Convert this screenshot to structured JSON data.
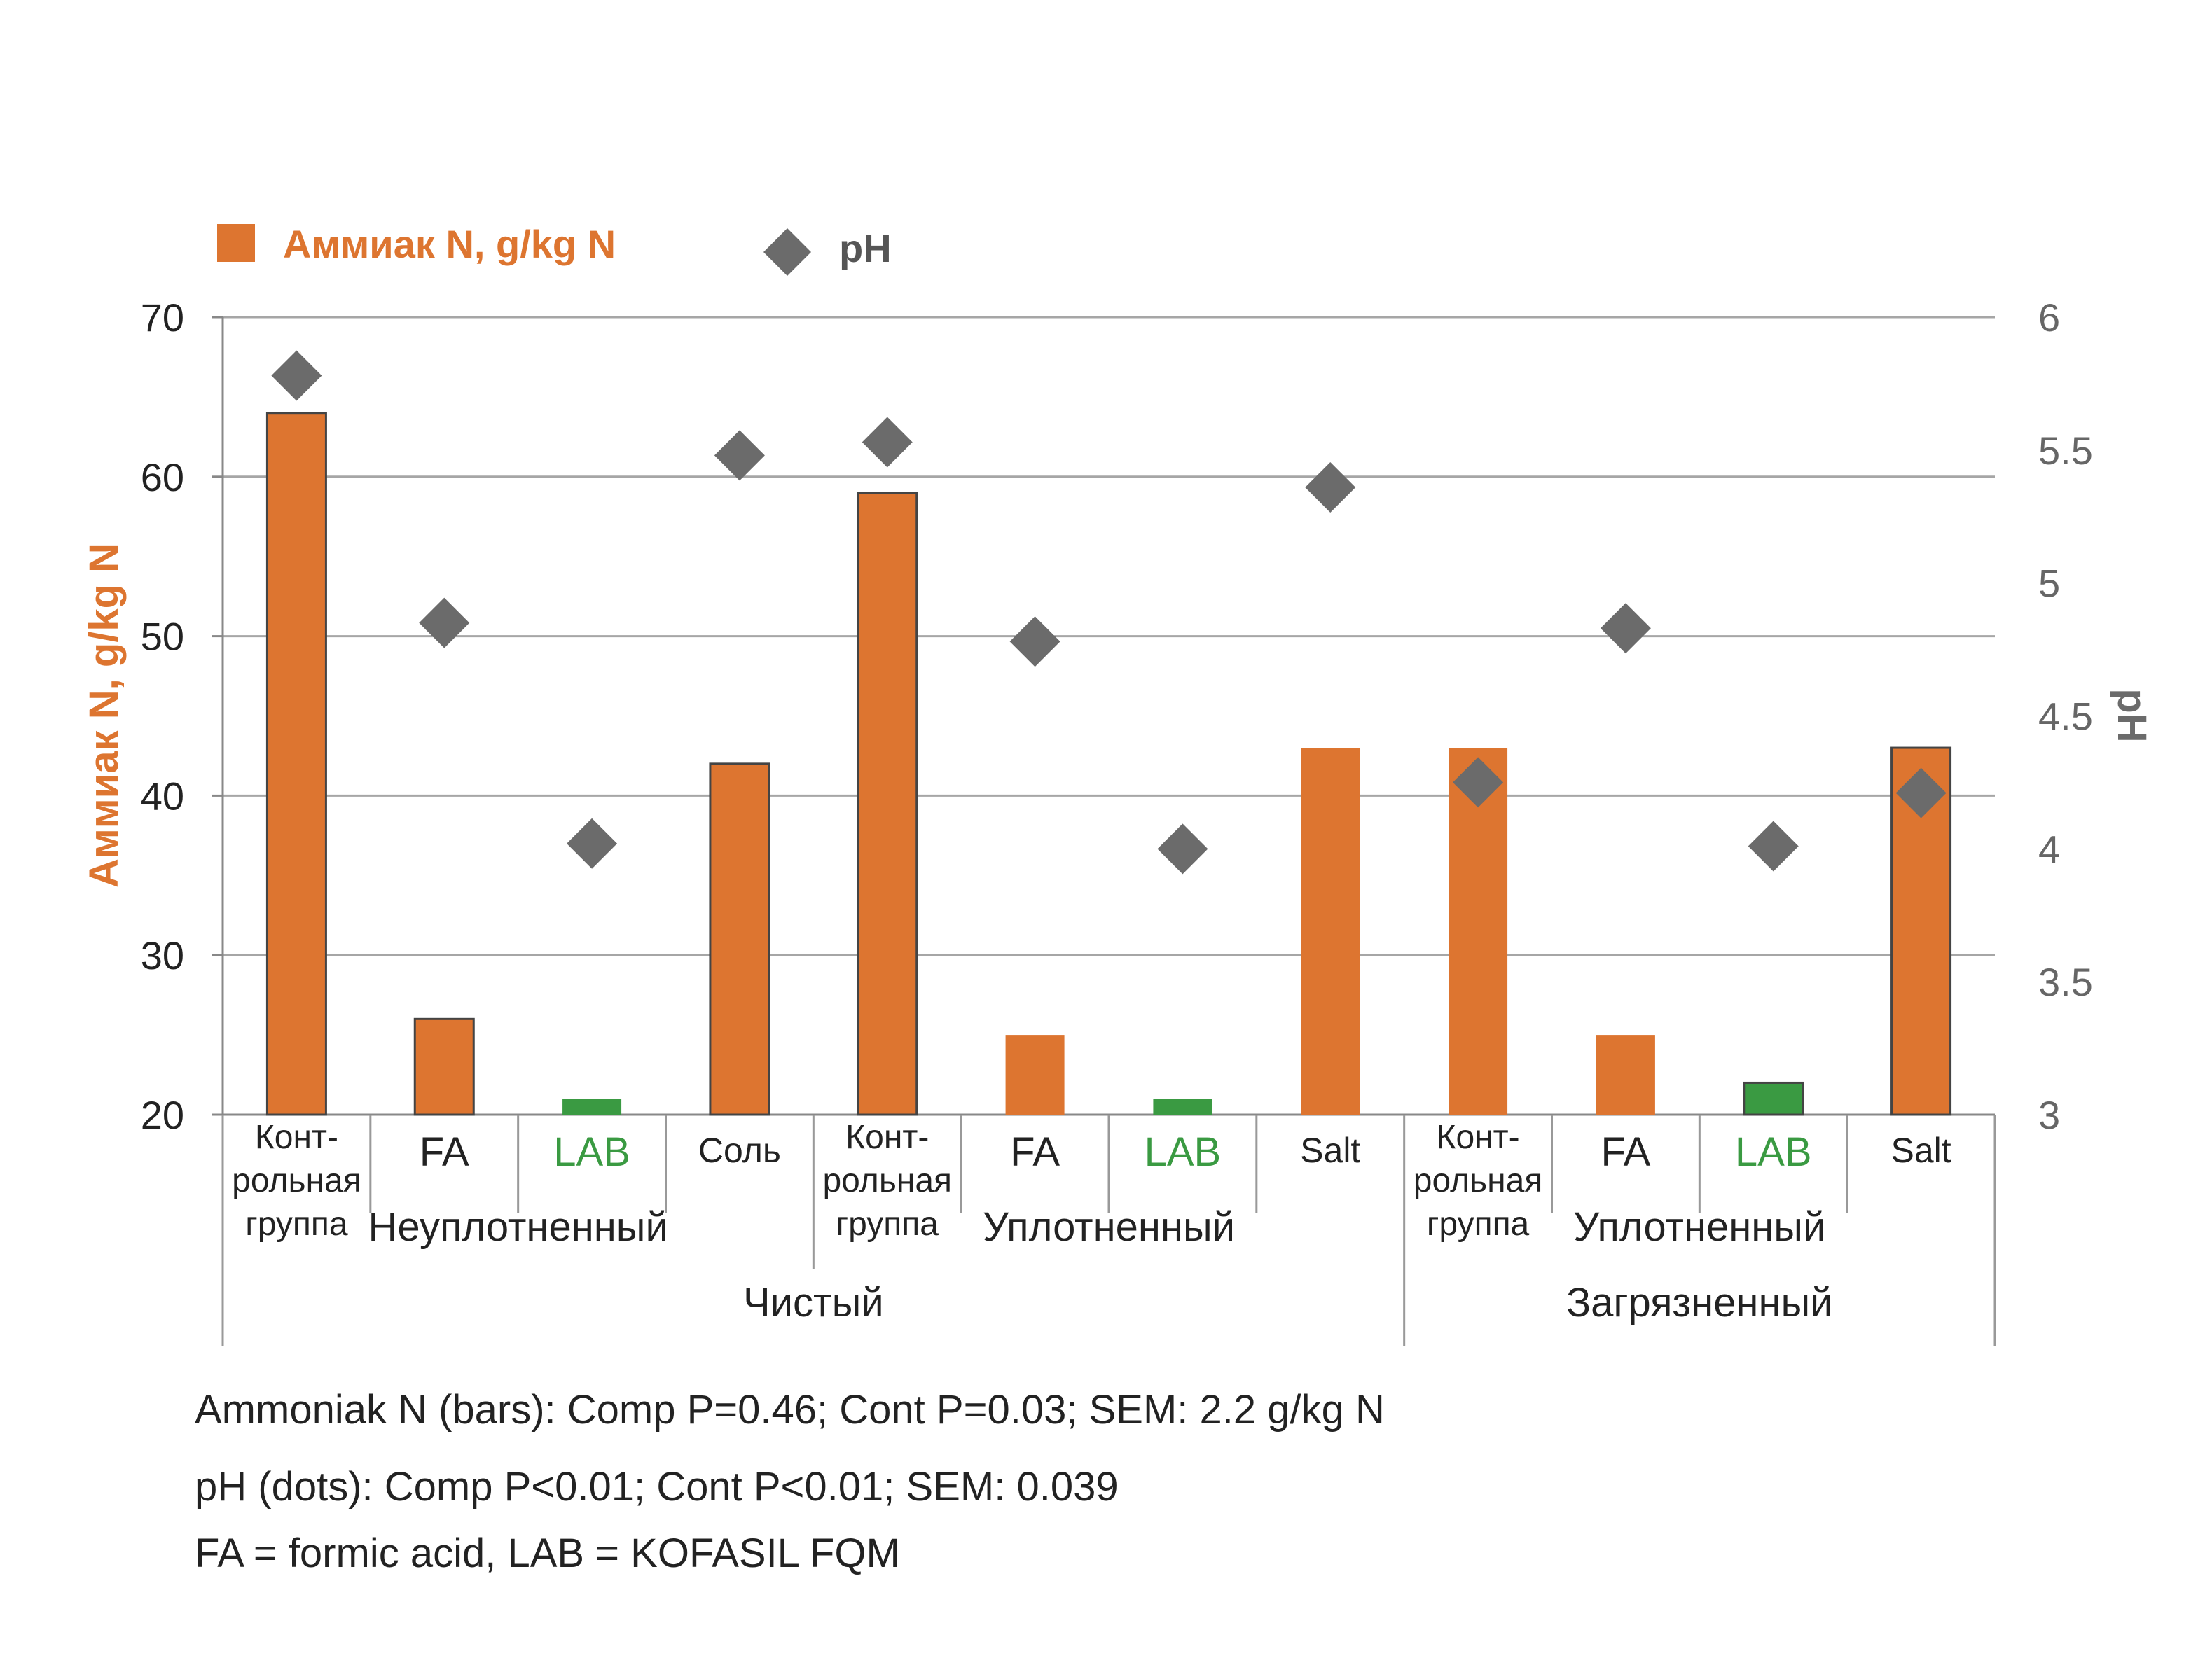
{
  "chart_data": {
    "type": "bar",
    "title": "",
    "legend": {
      "placement": "top-left",
      "items": [
        {
          "label": "Аммиак N, g/kg N",
          "marker": "square",
          "color": "#dd7530"
        },
        {
          "label": "pH",
          "marker": "diamond",
          "color": "#6b6b6b"
        }
      ]
    },
    "y_axis_left": {
      "label": "Аммиак  N, g/kg N",
      "min": 20,
      "max": 70,
      "ticks": [
        20,
        30,
        40,
        50,
        60,
        70
      ]
    },
    "y_axis_right": {
      "label": "pH",
      "min": 3,
      "max": 6,
      "ticks": [
        3,
        3.5,
        4,
        4.5,
        5,
        5.5,
        6
      ]
    },
    "categories": [
      {
        "label": [
          "Конт-",
          "рольная",
          "группа"
        ],
        "color": "#222222",
        "size": "small"
      },
      {
        "label": [
          "FA"
        ],
        "color": "#222222",
        "size": "large"
      },
      {
        "label": [
          "LAB"
        ],
        "color": "#3a9a42",
        "size": "large"
      },
      {
        "label": [
          "Соль"
        ],
        "color": "#222222",
        "size": "small"
      },
      {
        "label": [
          "Конт-",
          "рольная",
          "группа"
        ],
        "color": "#222222",
        "size": "small"
      },
      {
        "label": [
          "FA"
        ],
        "color": "#222222",
        "size": "large"
      },
      {
        "label": [
          "LAB"
        ],
        "color": "#3a9a42",
        "size": "large"
      },
      {
        "label": [
          "Salt"
        ],
        "color": "#222222",
        "size": "small"
      },
      {
        "label": [
          "Конт-",
          "рольная",
          "группа"
        ],
        "color": "#222222",
        "size": "small"
      },
      {
        "label": [
          "FA"
        ],
        "color": "#222222",
        "size": "large"
      },
      {
        "label": [
          "LAB"
        ],
        "color": "#3a9a42",
        "size": "large"
      },
      {
        "label": [
          "Salt"
        ],
        "color": "#222222",
        "size": "small"
      }
    ],
    "groups_level1": [
      {
        "label": "Неуплотненный",
        "start": 0,
        "end": 3
      },
      {
        "label": "Уплотненный",
        "start": 4,
        "end": 7
      },
      {
        "label": "Уплотненный",
        "start": 8,
        "end": 11
      }
    ],
    "groups_level2": [
      {
        "label": "Чистый",
        "start": 0,
        "end": 7
      },
      {
        "label": "Загрязненный",
        "start": 8,
        "end": 11
      }
    ],
    "series": [
      {
        "name": "Аммиак N, g/kg N",
        "type": "bar",
        "axis": "left",
        "values": [
          64,
          26,
          21,
          42,
          59,
          25,
          21,
          43,
          43,
          25,
          22,
          43
        ],
        "colors": [
          "#dd7530",
          "#dd7530",
          "#3a9a42",
          "#dd7530",
          "#dd7530",
          "#dd7530",
          "#3a9a42",
          "#dd7530",
          "#dd7530",
          "#dd7530",
          "#3a9a42",
          "#dd7530"
        ],
        "outlined": [
          true,
          true,
          false,
          true,
          true,
          false,
          false,
          false,
          false,
          false,
          true,
          true
        ]
      },
      {
        "name": "pH",
        "type": "scatter",
        "axis": "right",
        "values": [
          5.78,
          4.85,
          4.02,
          5.48,
          5.53,
          4.78,
          4.0,
          5.36,
          4.25,
          4.83,
          4.01,
          4.21
        ]
      }
    ],
    "colors": {
      "bar": "#dd7530",
      "bar_lab": "#3a9a42",
      "ph": "#6b6b6b",
      "axis_label": "#dd7530",
      "grid": "#a6a6a6",
      "right_ticks": "#666666"
    }
  },
  "notes": {
    "line1": "Ammoniak N (bars): Comp P=0.46; Cont P=0.03; SEM: 2.2 g/kg N",
    "line2": "pH (dots): Comp P<0.01; Cont P<0.01; SEM: 0.039",
    "line3": "FA = formic acid, LAB = KOFASIL FQM"
  }
}
